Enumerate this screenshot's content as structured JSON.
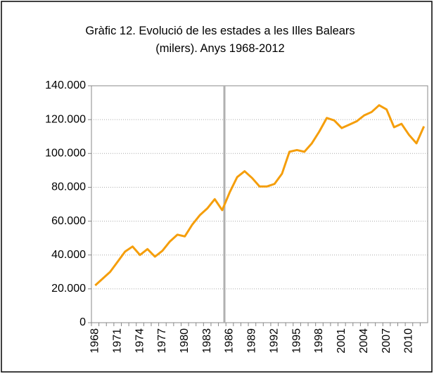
{
  "chart_data": {
    "type": "line",
    "title": "Gràfic 12. Evolució de les estades a les Illes Balears (milers). Anys 1968-2012",
    "categories": [
      "1968",
      null,
      null,
      "1971",
      null,
      null,
      "1974",
      null,
      null,
      "1977",
      null,
      null,
      "1980",
      null,
      null,
      "1983",
      null,
      null,
      "1986",
      null,
      null,
      "1989",
      null,
      null,
      "1992",
      null,
      null,
      "1995",
      null,
      null,
      "1998",
      null,
      null,
      "2001",
      null,
      null,
      "2004",
      null,
      null,
      "2007",
      null,
      null,
      "2010",
      null,
      null
    ],
    "series": [
      {
        "name": null,
        "color": "#f59e0b",
        "values": [
          22000,
          26000,
          30000,
          36000,
          42000,
          45000,
          40000,
          43500,
          39000,
          42500,
          48000,
          52000,
          51000,
          58000,
          63500,
          67500,
          73000,
          66500,
          77000,
          86000,
          89500,
          85500,
          80500,
          80500,
          82000,
          88000,
          101000,
          102000,
          101000,
          106000,
          113000,
          121000,
          119500,
          115000,
          117000,
          119000,
          122500,
          124500,
          128500,
          126000,
          115500,
          117500,
          111000,
          106000,
          116000
        ]
      }
    ],
    "ylim": [
      0,
      140000
    ],
    "yticks": [
      0,
      {
        "value": 20000,
        "label": "20.000"
      },
      {
        "value": 40000,
        "label": "40.000"
      },
      {
        "value": 60000,
        "label": "60.000"
      },
      {
        "value": 80000,
        "label": "80.000"
      },
      {
        "value": 100000,
        "label": "100.000"
      },
      {
        "value": 120000,
        "label": "120.000"
      },
      {
        "value": 140000,
        "label": "140.000"
      }
    ],
    "grid": true
  }
}
